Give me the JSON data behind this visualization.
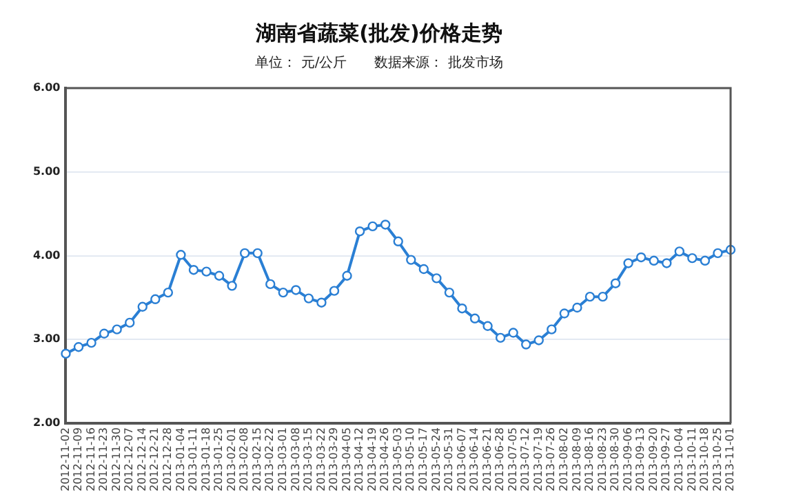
{
  "chart_data": {
    "type": "line",
    "title": "湖南省蔬菜(批发)价格走势",
    "subtitle": "单位： 元/公斤　　数据来源： 批发市场",
    "categories": [
      "2012-11-02",
      "2012-11-09",
      "2012-11-16",
      "2012-11-23",
      "2012-11-30",
      "2012-12-07",
      "2012-12-14",
      "2012-12-21",
      "2012-12-28",
      "2013-01-04",
      "2013-01-11",
      "2013-01-18",
      "2013-01-25",
      "2013-02-01",
      "2013-02-08",
      "2013-02-15",
      "2013-02-22",
      "2013-03-01",
      "2013-03-08",
      "2013-03-15",
      "2013-03-22",
      "2013-03-29",
      "2013-04-05",
      "2013-04-12",
      "2013-04-19",
      "2013-04-26",
      "2013-05-03",
      "2013-05-10",
      "2013-05-17",
      "2013-05-24",
      "2013-05-31",
      "2013-06-07",
      "2013-06-14",
      "2013-06-21",
      "2013-06-28",
      "2013-07-05",
      "2013-07-12",
      "2013-07-19",
      "2013-07-26",
      "2013-08-02",
      "2013-08-09",
      "2013-08-16",
      "2013-08-23",
      "2013-08-30",
      "2013-09-06",
      "2013-09-13",
      "2013-09-20",
      "2013-09-27",
      "2013-10-04",
      "2013-10-11",
      "2013-10-18",
      "2013-10-25",
      "2013-11-01"
    ],
    "series": [
      {
        "color": "#2a7fd4",
        "values": [
          2.83,
          2.91,
          2.96,
          3.07,
          3.12,
          3.2,
          3.39,
          3.48,
          3.56,
          4.01,
          3.83,
          3.81,
          3.76,
          3.64,
          4.03,
          4.03,
          3.66,
          3.56,
          3.59,
          3.49,
          3.44,
          3.58,
          3.76,
          4.29,
          4.35,
          4.37,
          4.17,
          3.95,
          3.84,
          3.73,
          3.56,
          3.37,
          3.25,
          3.16,
          3.02,
          3.08,
          2.94,
          2.99,
          3.12,
          3.31,
          3.38,
          3.51,
          3.51,
          3.67,
          3.91,
          3.98,
          3.94,
          3.91,
          4.05,
          3.97,
          3.94,
          4.03,
          4.07
        ]
      }
    ],
    "ylim": [
      2,
      6
    ],
    "yticks": [
      {
        "value": 2,
        "label": "2.00"
      },
      {
        "value": 3,
        "label": "3.00"
      },
      {
        "value": 4,
        "label": "4.00"
      },
      {
        "value": 5,
        "label": "5.00"
      },
      {
        "value": 6,
        "label": "6.00"
      }
    ],
    "grid": "y",
    "legend": false,
    "marker": "circle",
    "line_style": "solid"
  }
}
